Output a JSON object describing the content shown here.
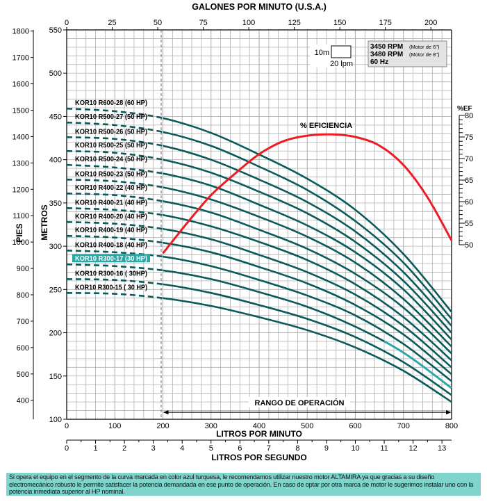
{
  "chart_data": {
    "type": "line",
    "top_axis": {
      "label": "GALONES POR MINUTO (U.S.A.)",
      "ticks": [
        0,
        25,
        50,
        75,
        100,
        125,
        150,
        175,
        200
      ]
    },
    "x_axis": {
      "label": "LITROS POR MINUTO",
      "ticks": [
        0,
        100,
        200,
        300,
        400,
        500,
        600,
        700,
        800
      ],
      "range": [
        0,
        800
      ]
    },
    "bottom_axis": {
      "label": "LITROS POR SEGUNDO",
      "ticks": [
        0,
        1,
        2,
        3,
        4,
        5,
        6,
        7,
        8,
        9,
        10,
        11,
        12,
        13
      ]
    },
    "y_axis": {
      "label": "METROS",
      "ticks": [
        100,
        150,
        200,
        250,
        300,
        350,
        400,
        450,
        500,
        550
      ],
      "range": [
        100,
        550
      ]
    },
    "y_axis_feet": {
      "label": "PIES",
      "ticks": [
        400,
        500,
        600,
        700,
        800,
        900,
        1000,
        1100,
        1200,
        1300,
        1400,
        1500,
        1600,
        1700,
        1800
      ]
    },
    "eff_axis": {
      "label": "%EF",
      "ticks": [
        50,
        55,
        60,
        65,
        70,
        75,
        80
      ],
      "range": [
        50,
        80
      ]
    },
    "grid": true,
    "flows": [
      0,
      100,
      200,
      300,
      400,
      500,
      600,
      700,
      800
    ],
    "series": [
      {
        "name": "KOR10 R600-28 (60 HP)",
        "values": [
          459,
          456,
          448,
          431,
          406,
          378,
          342,
          291,
          224
        ]
      },
      {
        "name": "KOR10 R500-27 (50 HP)",
        "values": [
          443,
          440,
          432,
          416,
          392,
          365,
          329,
          281,
          216
        ]
      },
      {
        "name": "KOR10 R500-26 (50 HP)",
        "values": [
          426,
          424,
          416,
          400,
          377,
          351,
          317,
          270,
          208
        ]
      },
      {
        "name": "KOR10 R500-25 (50 HP)",
        "values": [
          410,
          408,
          400,
          385,
          363,
          338,
          305,
          260,
          200
        ]
      },
      {
        "name": "KOR10 R500-24 (50 HP)",
        "values": [
          394,
          391,
          384,
          370,
          348,
          324,
          293,
          250,
          192
        ]
      },
      {
        "name": "KOR10 R500-23 (50 HP)",
        "values": [
          377,
          375,
          368,
          354,
          334,
          311,
          281,
          239,
          184
        ]
      },
      {
        "name": "KOR10 R400-22 (40 HP)",
        "values": [
          361,
          359,
          352,
          339,
          319,
          297,
          268,
          229,
          176
        ]
      },
      {
        "name": "KOR10 R400-21 (40 HP)",
        "values": [
          344,
          342,
          336,
          323,
          305,
          284,
          256,
          218,
          168
        ]
      },
      {
        "name": "KOR10 R400-20 (40 HP)",
        "values": [
          328,
          326,
          320,
          308,
          290,
          270,
          244,
          208,
          160
        ]
      },
      {
        "name": "KOR10 R400-19 (40 HP)",
        "values": [
          312,
          310,
          304,
          293,
          276,
          257,
          232,
          198,
          152
        ]
      },
      {
        "name": "KOR10 R400-18 (40 HP)",
        "values": [
          295,
          293,
          288,
          277,
          261,
          243,
          220,
          187,
          144
        ]
      },
      {
        "name": "KOR10 R300-17 (30 HP)",
        "values": [
          279,
          277,
          272,
          262,
          247,
          230,
          207,
          177,
          136
        ],
        "highlight": true
      },
      {
        "name": "KOR10 R300-16 ( 30HP)",
        "values": [
          262,
          261,
          256,
          246,
          232,
          216,
          195,
          166,
          128
        ]
      },
      {
        "name": "KOR10 R300-15 ( 30 HP)",
        "values": [
          246,
          245,
          240,
          231,
          218,
          203,
          183,
          156,
          120
        ]
      }
    ],
    "dashed_below_flow": 200,
    "highlight_from_flow": 660,
    "efficiency": {
      "label": "% EFICIENCIA",
      "flows": [
        200,
        250,
        300,
        350,
        400,
        450,
        500,
        550,
        600,
        650,
        700,
        750,
        800
      ],
      "values": [
        48,
        55,
        61.5,
        66.5,
        71,
        74,
        75.3,
        75.6,
        75,
        73,
        68.5,
        61,
        51
      ]
    },
    "operating_range": {
      "label": "RANGO DE OPERACIÓN",
      "from": 200,
      "to": 800
    },
    "scale_box": {
      "vertical": "10m",
      "horizontal": "20 lpm"
    },
    "motor_info": [
      {
        "rpm": "3450 RPM",
        "note": "(Motor de 6\")"
      },
      {
        "rpm": "3480 RPM",
        "note": "(Motor de 8\")"
      },
      {
        "rpm": "60 Hz",
        "note": ""
      }
    ],
    "colors": {
      "curve": "#0a5a5a",
      "highlight": "#2aa8a8",
      "efficiency": "#ee1c24",
      "grid": "#a8a8a8",
      "footer": "#7fd4cc"
    }
  },
  "footer_note": "Si opera el equipo en el segmento de la curva marcada en color azul turquesa, le recomendamos utilizar nuestro motor ALTAMIRA ya que gracias a su diseño electromecánico robusto le permite satisfacer la potencia demandada en ese punto de operación. En caso de optar por otra marca de motor le sugerimos instalar uno con la potencia inmediata superior al HP nominal."
}
